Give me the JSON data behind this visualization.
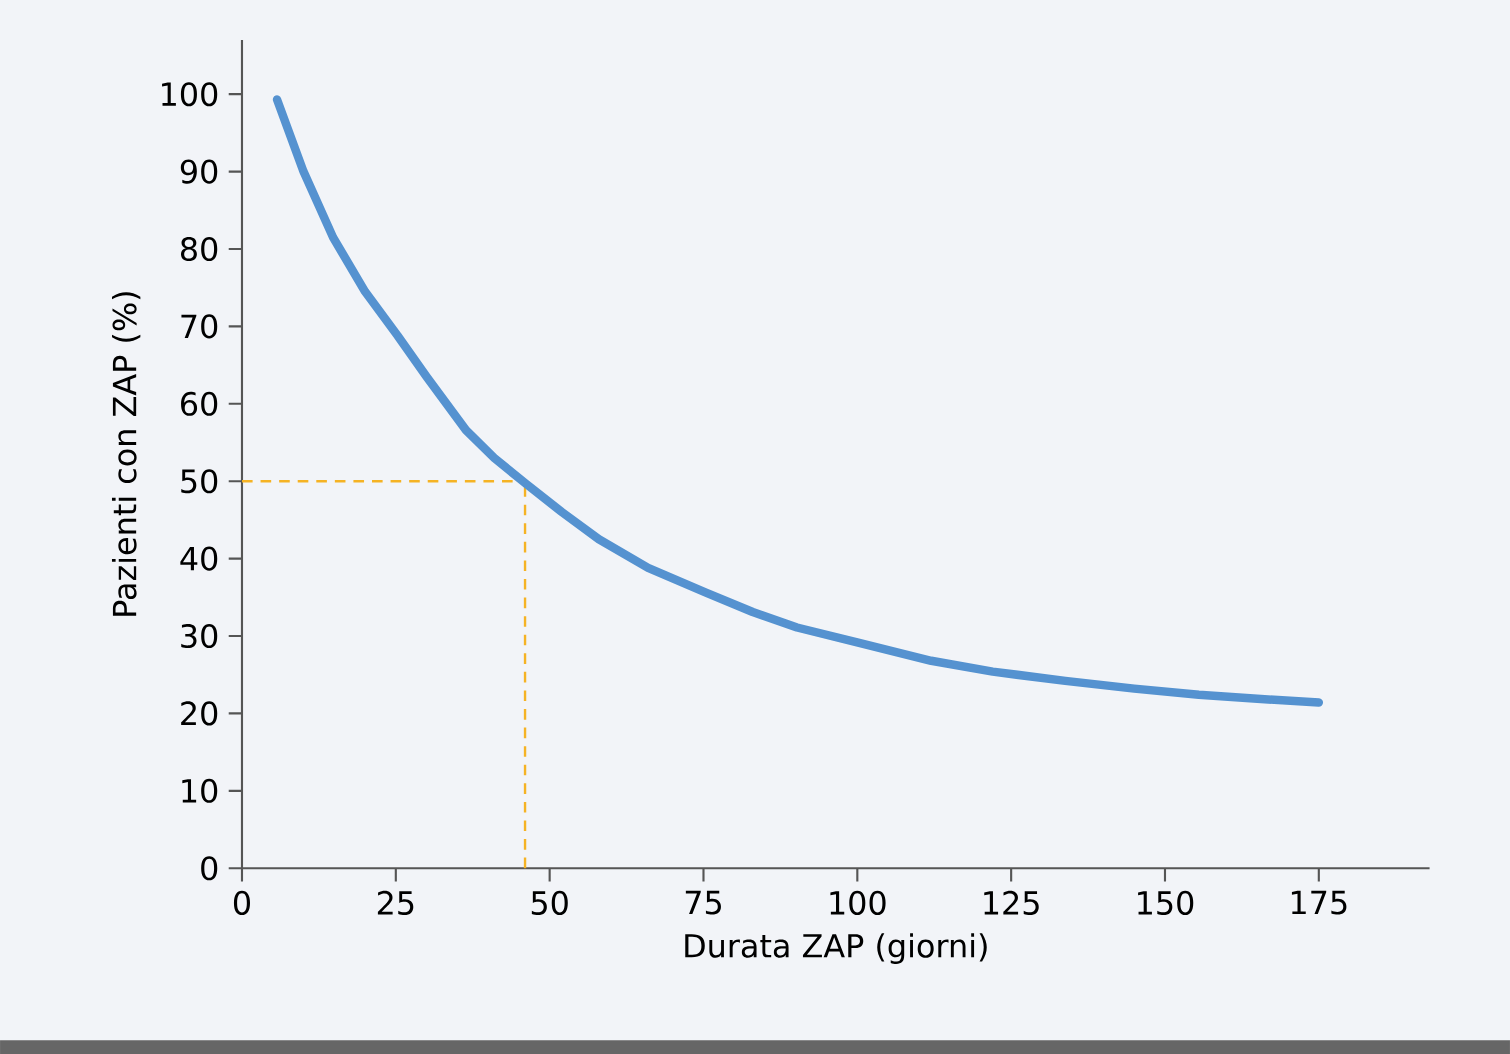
{
  "chart_data": {
    "type": "line",
    "xlabel": "Durata ZAP (giorni)",
    "ylabel": "Pazienti con ZAP (%)",
    "xlim": [
      0,
      193
    ],
    "ylim": [
      0,
      107
    ],
    "xticks": [
      0,
      25,
      50,
      75,
      100,
      125,
      150,
      175
    ],
    "yticks": [
      0,
      10,
      20,
      30,
      40,
      50,
      60,
      70,
      80,
      90,
      100
    ],
    "grid": false,
    "series": [
      {
        "color": "#5592d0",
        "x": [
          5.7,
          10,
          14.8,
          20,
          25.3,
          30,
          36.4,
          41,
          46.1,
          52,
          58,
          66,
          75.4,
          83,
          90.2,
          100.3,
          112,
          122,
          133.8,
          145,
          155.5,
          165,
          175
        ],
        "values": [
          99.3,
          90,
          81.5,
          74.5,
          68.8,
          63.5,
          56.6,
          53,
          49.7,
          46,
          42.5,
          38.8,
          35.6,
          33.1,
          31.1,
          29.1,
          26.8,
          25.4,
          24.2,
          23.2,
          22.4,
          21.9,
          21.4
        ]
      }
    ],
    "ref_lines": [
      {
        "axis": "y",
        "value": 50,
        "color": "#f5b324",
        "line_style": "dashed"
      },
      {
        "axis": "x",
        "value": 46,
        "color": "#f5b324",
        "line_style": "dashed"
      }
    ]
  }
}
